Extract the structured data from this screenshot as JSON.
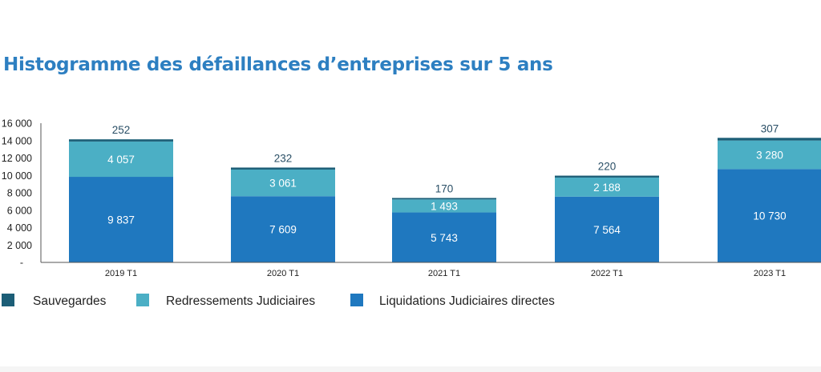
{
  "title": "Histogramme des défaillances d’entreprises sur 5 ans",
  "chart_data": {
    "type": "bar",
    "stacked": true,
    "title": "Histogramme des défaillances d’entreprises sur 5 ans",
    "categories": [
      "2019 T1",
      "2020 T1",
      "2021 T1",
      "2022 T1",
      "2023 T1"
    ],
    "series": [
      {
        "name": "Liquidations Judiciaires directes",
        "color": "#1f78bf",
        "values": [
          9837,
          7609,
          5743,
          7564,
          10730
        ],
        "labels": [
          "9 837",
          "7 609",
          "5 743",
          "7 564",
          "10 730"
        ]
      },
      {
        "name": "Redressements Judiciaires",
        "color": "#4bafc5",
        "values": [
          4057,
          3061,
          1493,
          2188,
          3280
        ],
        "labels": [
          "4 057",
          "3 061",
          "1 493",
          "2 188",
          "3 280"
        ]
      },
      {
        "name": "Sauvegardes",
        "color": "#1c5e77",
        "values": [
          252,
          232,
          170,
          220,
          307
        ],
        "labels": [
          "252",
          "232",
          "170",
          "220",
          "307"
        ]
      }
    ],
    "ylim": [
      0,
      16000
    ],
    "yticks": [
      0,
      2000,
      4000,
      6000,
      8000,
      10000,
      12000,
      14000,
      16000
    ],
    "ytick_labels": [
      "-",
      "2 000",
      "4 000",
      "6 000",
      "8 000",
      "10 000",
      "12 000",
      "14 000",
      "16 000"
    ],
    "grid": false,
    "legend_position": "bottom-left",
    "legend_order": [
      "Sauvegardes",
      "Redressements Judiciaires",
      "Liquidations Judiciaires directes"
    ]
  }
}
